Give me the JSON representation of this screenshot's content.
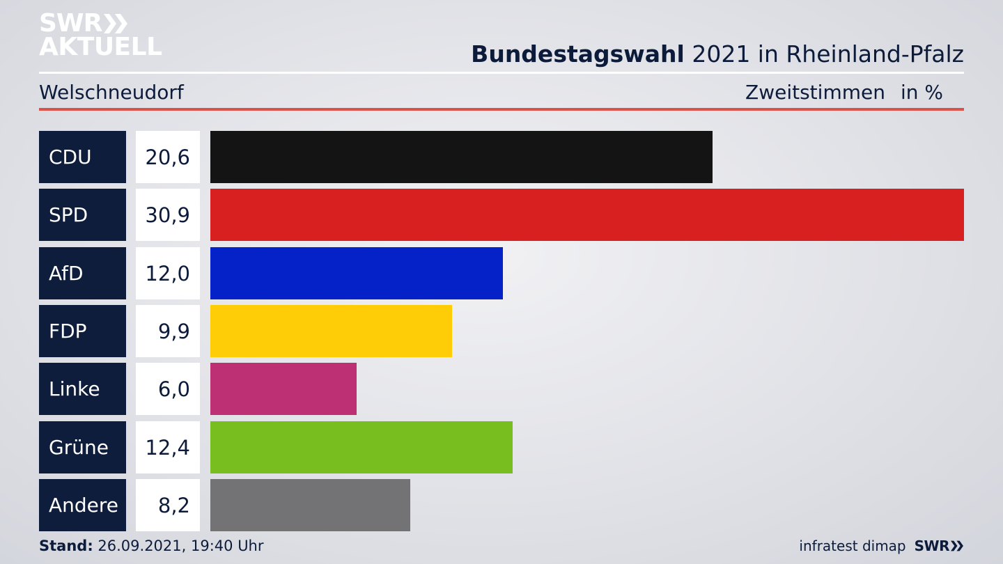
{
  "logo": {
    "line1": "SWR",
    "line2": "AKTUELL"
  },
  "header": {
    "title_bold": "Bundestagswahl",
    "title_rest": "2021 in Rheinland-Pfalz",
    "location": "Welschneudorf",
    "measure": "Zweitstimmen",
    "unit": "in %"
  },
  "chart_data": {
    "type": "bar",
    "orientation": "horizontal",
    "categories": [
      "CDU",
      "SPD",
      "AfD",
      "FDP",
      "Linke",
      "Grüne",
      "Andere"
    ],
    "values": [
      20.6,
      30.9,
      12.0,
      9.9,
      6.0,
      12.4,
      8.2
    ],
    "value_labels": [
      "20,6",
      "30,9",
      "12,0",
      "9,9",
      "6,0",
      "12,4",
      "8,2"
    ],
    "colors": [
      "#141414",
      "#d82020",
      "#0522c8",
      "#ffcd08",
      "#bd3174",
      "#78be1e",
      "#737375"
    ],
    "xlim": [
      0,
      30.9
    ],
    "grid": false,
    "legend": "none"
  },
  "footer": {
    "stand_label": "Stand:",
    "stand_value": "26.09.2021, 19:40 Uhr",
    "source": "infratest dimap",
    "broadcaster": "SWR"
  },
  "colors": {
    "navy": "#0f1d3c",
    "accent_red": "#d9534b",
    "background": "#e3e4e9"
  }
}
